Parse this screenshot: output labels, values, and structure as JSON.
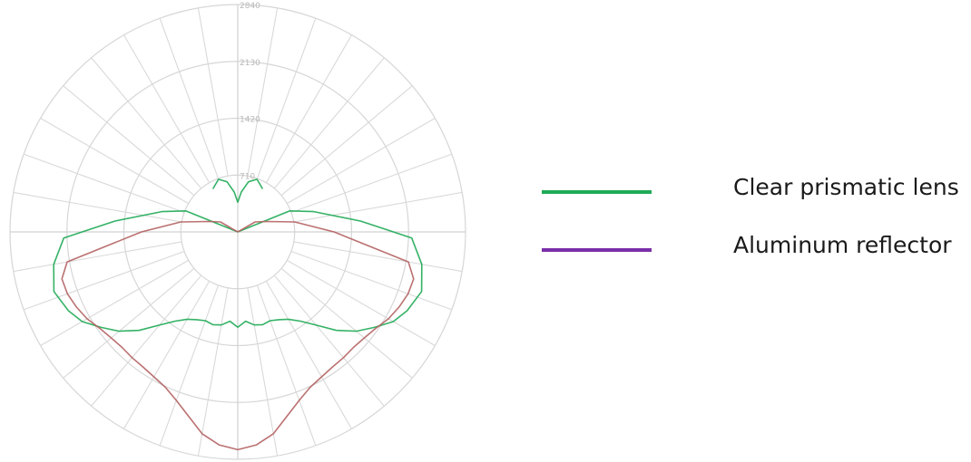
{
  "chart_data": {
    "type": "polar",
    "title": "",
    "ring_labels": [
      "710",
      "1420",
      "2130",
      "2840"
    ],
    "rlim": [
      0,
      2840
    ],
    "angular_grid_step_deg": 10,
    "angle_convention": "0 = straight down (nadir), positive toward right",
    "series": [
      {
        "name": "Clear prismatic lens",
        "color": "#1faa55",
        "curves": [
          {
            "angles": [
              -120,
              -112,
              -105,
              -95,
              -88,
              -80,
              -72,
              -65,
              -60,
              -55,
              -50,
              -45,
              -40,
              -35,
              -30,
              -25,
              -20,
              -15,
              -10,
              -5,
              0,
              5,
              10,
              15,
              20,
              25,
              30,
              35,
              40,
              45,
              50,
              55,
              60,
              65,
              72,
              80,
              88,
              95,
              105,
              112,
              120
            ],
            "r": [
              0,
              700,
              980,
              1540,
              2170,
              2330,
              2410,
              2330,
              2240,
              2080,
              1930,
              1740,
              1520,
              1360,
              1260,
              1210,
              1180,
              1200,
              1180,
              1120,
              1190,
              1120,
              1180,
              1200,
              1180,
              1210,
              1260,
              1360,
              1520,
              1740,
              1930,
              2080,
              2240,
              2330,
              2410,
              2330,
              2170,
              1540,
              980,
              700,
              0
            ]
          },
          {
            "angles": [
              -150,
              -160,
              -168,
              -175,
              180,
              175,
              168,
              160,
              150
            ],
            "r": [
              620,
              700,
              640,
              500,
              370,
              500,
              640,
              700,
              620
            ]
          }
        ]
      },
      {
        "name": "Aluminum reflector",
        "color": "#7a2fa8",
        "display_color": "#b46262",
        "curves": [
          {
            "angles": [
              -130,
              -120,
              -110,
              -100,
              -90,
              -80,
              -75,
              -70,
              -65,
              -60,
              -55,
              -50,
              -45,
              -40,
              -35,
              -30,
              -25,
              -20,
              -15,
              -10,
              -5,
              0,
              5,
              10,
              15,
              20,
              25,
              30,
              35,
              40,
              45,
              50,
              55,
              60,
              65,
              70,
              75,
              80,
              90,
              100,
              110,
              120,
              130
            ],
            "r": [
              0,
              250,
              380,
              720,
              1200,
              2160,
              2270,
              2260,
              2220,
              2170,
              2100,
              2060,
              2040,
              2050,
              2060,
              2090,
              2140,
              2240,
              2380,
              2560,
              2670,
              2720,
              2670,
              2560,
              2380,
              2240,
              2140,
              2090,
              2060,
              2050,
              2040,
              2060,
              2100,
              2170,
              2220,
              2260,
              2270,
              2160,
              1200,
              720,
              380,
              250,
              0
            ]
          }
        ]
      }
    ],
    "legend": {
      "placement": "right",
      "items": [
        {
          "label": "Clear prismatic lens",
          "color": "#1faa55"
        },
        {
          "label": "Aluminum reflector",
          "color": "#7a2fa8"
        }
      ]
    }
  }
}
